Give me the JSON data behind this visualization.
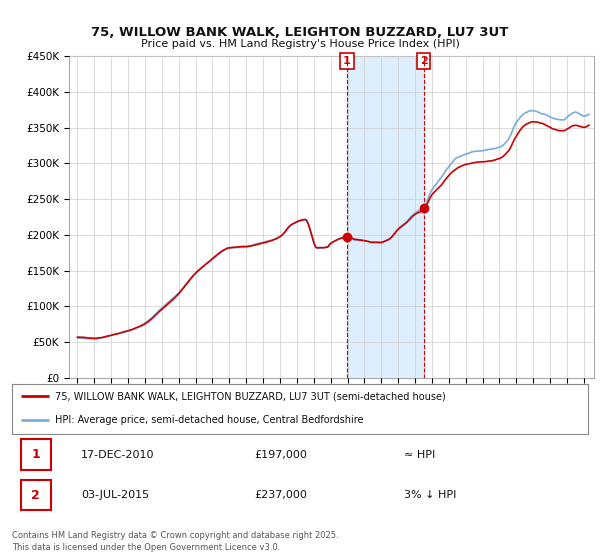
{
  "title_line1": "75, WILLOW BANK WALK, LEIGHTON BUZZARD, LU7 3UT",
  "title_line2": "Price paid vs. HM Land Registry's House Price Index (HPI)",
  "ylim": [
    0,
    450000
  ],
  "yticks": [
    0,
    50000,
    100000,
    150000,
    200000,
    250000,
    300000,
    350000,
    400000,
    450000
  ],
  "ytick_labels": [
    "£0",
    "£50K",
    "£100K",
    "£150K",
    "£200K",
    "£250K",
    "£300K",
    "£350K",
    "£400K",
    "£450K"
  ],
  "xlim_start": 1994.5,
  "xlim_end": 2025.6,
  "hpi_color": "#7aabdc",
  "price_color": "#cc0000",
  "purchase1_date": 2010.96,
  "purchase1_price": 197000,
  "purchase2_date": 2015.5,
  "purchase2_price": 237000,
  "vline_color": "#cc0000",
  "shade_color": "#ddeeff",
  "legend_label1": "75, WILLOW BANK WALK, LEIGHTON BUZZARD, LU7 3UT (semi-detached house)",
  "legend_label2": "HPI: Average price, semi-detached house, Central Bedfordshire",
  "table_row1": [
    "1",
    "17-DEC-2010",
    "£197,000",
    "≈ HPI"
  ],
  "table_row2": [
    "2",
    "03-JUL-2015",
    "£237,000",
    "3% ↓ HPI"
  ],
  "footer": "Contains HM Land Registry data © Crown copyright and database right 2025.\nThis data is licensed under the Open Government Licence v3.0.",
  "background_color": "#ffffff",
  "grid_color": "#cccccc"
}
